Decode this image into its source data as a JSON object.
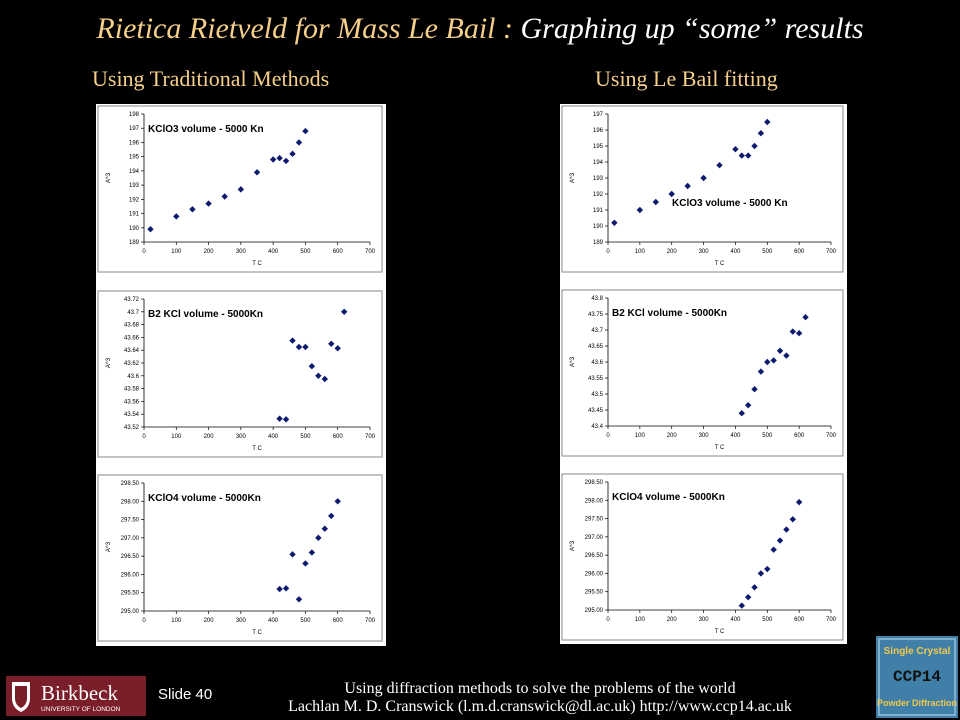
{
  "slide": {
    "title_part1": "Rietica Rietveld for Mass Le Bail : ",
    "title_part2": "Graphing up “some” results",
    "left_heading": "Using Traditional Methods",
    "right_heading": "Using Le Bail fitting",
    "slide_label": "Slide 40",
    "footer_line1": "Using diffraction methods to solve the problems of the world",
    "footer_line2": "Lachlan M. D. Cranswick (l.m.d.cranswick@dl.ac.uk) http://www.ccp14.ac.uk",
    "logo_left_name": "Birkbeck",
    "logo_left_sub": "UNIVERSITY OF LONDON",
    "logo_right_line1": "Single Crystal",
    "logo_right_line2": "CCP14",
    "logo_right_line3": "Powder Diffraction"
  },
  "chart_data": [
    {
      "type": "scatter",
      "title": "KClO3 volume - 5000 Kn",
      "xlabel": "T C",
      "ylabel": "A^3",
      "xlim": [
        0,
        700
      ],
      "ylim": [
        189,
        198
      ],
      "xticks": [
        0,
        100,
        200,
        300,
        400,
        500,
        600,
        700
      ],
      "yticks": [
        "189",
        "190",
        "191",
        "192",
        "193",
        "194",
        "195",
        "196",
        "197",
        "198"
      ],
      "x": [
        20,
        100,
        150,
        200,
        250,
        300,
        350,
        400,
        420,
        440,
        460,
        480,
        500
      ],
      "y": [
        189.9,
        190.8,
        191.3,
        191.7,
        192.2,
        192.7,
        193.9,
        194.8,
        194.9,
        194.7,
        195.2,
        196.0,
        196.8
      ]
    },
    {
      "type": "scatter",
      "title": "B2 KCl volume - 5000Kn",
      "xlabel": "T C",
      "ylabel": "A^3",
      "xlim": [
        0,
        700
      ],
      "ylim": [
        43.52,
        43.72
      ],
      "xticks": [
        0,
        100,
        200,
        300,
        400,
        500,
        600,
        700
      ],
      "yticks": [
        "43.52",
        "43.54",
        "43.56",
        "43.58",
        "43.6",
        "43.62",
        "43.64",
        "43.66",
        "43.68",
        "43.7",
        "43.72"
      ],
      "x": [
        420,
        440,
        460,
        480,
        500,
        520,
        540,
        560,
        580,
        600,
        620
      ],
      "y": [
        43.533,
        43.532,
        43.655,
        43.645,
        43.645,
        43.615,
        43.6,
        43.595,
        43.65,
        43.643,
        43.7
      ]
    },
    {
      "type": "scatter",
      "title": "KClO4 volume - 5000Kn",
      "xlabel": "T C",
      "ylabel": "A^3",
      "xlim": [
        0,
        700
      ],
      "ylim": [
        295.0,
        298.5
      ],
      "xticks": [
        0,
        100,
        200,
        300,
        400,
        500,
        600,
        700
      ],
      "yticks": [
        "295.00",
        "295.50",
        "296.00",
        "296.50",
        "297.00",
        "297.50",
        "298.00",
        "298.50"
      ],
      "x": [
        420,
        440,
        460,
        480,
        500,
        520,
        540,
        560,
        580,
        600
      ],
      "y": [
        295.6,
        295.62,
        296.55,
        295.32,
        296.3,
        296.6,
        297.0,
        297.25,
        297.6,
        298.0
      ]
    },
    {
      "type": "scatter",
      "title": "KClO3 volume - 5000 Kn",
      "xlabel": "T C",
      "ylabel": "A^3",
      "xlim": [
        0,
        700
      ],
      "ylim": [
        189,
        197
      ],
      "xticks": [
        0,
        100,
        200,
        300,
        400,
        500,
        600,
        700
      ],
      "yticks": [
        "189",
        "190",
        "191",
        "192",
        "193",
        "194",
        "195",
        "196",
        "197"
      ],
      "x": [
        20,
        100,
        150,
        200,
        250,
        300,
        350,
        400,
        420,
        440,
        460,
        480,
        500
      ],
      "y": [
        190.2,
        191.0,
        191.5,
        192.0,
        192.5,
        193.0,
        193.8,
        194.8,
        194.4,
        194.4,
        195.0,
        195.8,
        196.5
      ]
    },
    {
      "type": "scatter",
      "title": "B2 KCl volume - 5000Kn",
      "xlabel": "T C",
      "ylabel": "A^3",
      "xlim": [
        0,
        700
      ],
      "ylim": [
        43.4,
        43.8
      ],
      "xticks": [
        0,
        100,
        200,
        300,
        400,
        500,
        600,
        700
      ],
      "yticks": [
        "43.4",
        "43.45",
        "43.5",
        "43.55",
        "43.6",
        "43.65",
        "43.7",
        "43.75",
        "43.8"
      ],
      "x": [
        420,
        440,
        460,
        480,
        500,
        520,
        540,
        560,
        580,
        600,
        620
      ],
      "y": [
        43.44,
        43.465,
        43.515,
        43.57,
        43.6,
        43.605,
        43.635,
        43.62,
        43.695,
        43.69,
        43.74
      ]
    },
    {
      "type": "scatter",
      "title": "KClO4 volume - 5000Kn",
      "xlabel": "T C",
      "ylabel": "A^3",
      "xlim": [
        0,
        700
      ],
      "ylim": [
        295.0,
        298.5
      ],
      "xticks": [
        0,
        100,
        200,
        300,
        400,
        500,
        600,
        700
      ],
      "yticks": [
        "295.00",
        "295.50",
        "296.00",
        "296.50",
        "297.00",
        "297.50",
        "298.00",
        "298.50"
      ],
      "x": [
        420,
        440,
        460,
        480,
        500,
        520,
        540,
        560,
        580,
        600
      ],
      "y": [
        295.12,
        295.35,
        295.62,
        296.0,
        296.12,
        296.65,
        296.9,
        297.2,
        297.48,
        297.95
      ]
    }
  ]
}
